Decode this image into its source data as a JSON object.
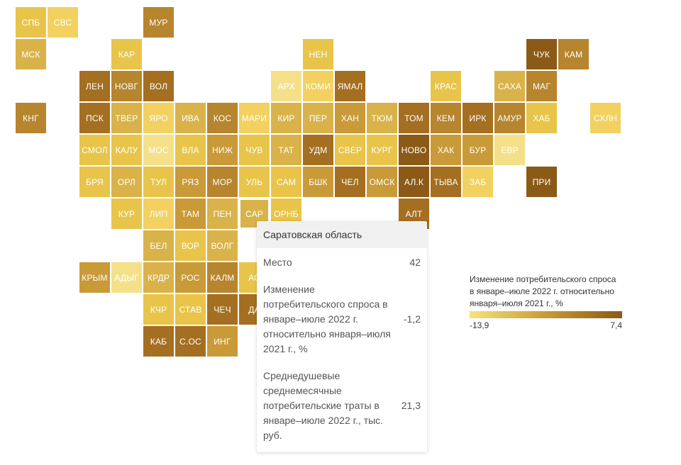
{
  "colors": {
    "l1": "#f5e08a",
    "l2": "#f2d160",
    "l3": "#e8c54a",
    "l4": "#d9b34a",
    "l5": "#c99a38",
    "l6": "#b6852e",
    "l7": "#a46f21",
    "l8": "#8b5a16"
  },
  "tiles": [
    {
      "code": "СПБ",
      "row": 0,
      "col": 0,
      "level": "l3"
    },
    {
      "code": "СВС",
      "row": 0,
      "col": 1,
      "level": "l2"
    },
    {
      "code": "МУР",
      "row": 0,
      "col": 4,
      "level": "l6"
    },
    {
      "code": "МСК",
      "row": 1,
      "col": 0,
      "level": "l4"
    },
    {
      "code": "КАР",
      "row": 1,
      "col": 3,
      "level": "l3"
    },
    {
      "code": "НЕН",
      "row": 1,
      "col": 9,
      "level": "l3"
    },
    {
      "code": "ЧУК",
      "row": 1,
      "col": 16,
      "level": "l8"
    },
    {
      "code": "КАМ",
      "row": 1,
      "col": 17,
      "level": "l6"
    },
    {
      "code": "ЛЕН",
      "row": 2,
      "col": 2,
      "level": "l7"
    },
    {
      "code": "НОВГ",
      "row": 2,
      "col": 3,
      "level": "l6"
    },
    {
      "code": "ВОЛ",
      "row": 2,
      "col": 4,
      "level": "l7"
    },
    {
      "code": "АРХ",
      "row": 2,
      "col": 8,
      "level": "l1"
    },
    {
      "code": "КОМИ",
      "row": 2,
      "col": 9,
      "level": "l2"
    },
    {
      "code": "ЯМАЛ",
      "row": 2,
      "col": 10,
      "level": "l7"
    },
    {
      "code": "КРАС",
      "row": 2,
      "col": 13,
      "level": "l3"
    },
    {
      "code": "САХА",
      "row": 2,
      "col": 15,
      "level": "l4"
    },
    {
      "code": "МАГ",
      "row": 2,
      "col": 16,
      "level": "l6"
    },
    {
      "code": "КНГ",
      "row": 3,
      "col": 0,
      "level": "l6"
    },
    {
      "code": "ПСК",
      "row": 3,
      "col": 2,
      "level": "l7"
    },
    {
      "code": "ТВЕР",
      "row": 3,
      "col": 3,
      "level": "l4"
    },
    {
      "code": "ЯРО",
      "row": 3,
      "col": 4,
      "level": "l2"
    },
    {
      "code": "ИВА",
      "row": 3,
      "col": 5,
      "level": "l4"
    },
    {
      "code": "КОС",
      "row": 3,
      "col": 6,
      "level": "l6"
    },
    {
      "code": "МАРИ",
      "row": 3,
      "col": 7,
      "level": "l2"
    },
    {
      "code": "КИР",
      "row": 3,
      "col": 8,
      "level": "l4"
    },
    {
      "code": "ПЕР",
      "row": 3,
      "col": 9,
      "level": "l4"
    },
    {
      "code": "ХАН",
      "row": 3,
      "col": 10,
      "level": "l5"
    },
    {
      "code": "ТЮМ",
      "row": 3,
      "col": 11,
      "level": "l4"
    },
    {
      "code": "ТОМ",
      "row": 3,
      "col": 12,
      "level": "l7"
    },
    {
      "code": "КЕМ",
      "row": 3,
      "col": 13,
      "level": "l6"
    },
    {
      "code": "ИРК",
      "row": 3,
      "col": 14,
      "level": "l7"
    },
    {
      "code": "АМУР",
      "row": 3,
      "col": 15,
      "level": "l6"
    },
    {
      "code": "ХАБ",
      "row": 3,
      "col": 16,
      "level": "l3"
    },
    {
      "code": "СХЛН",
      "row": 3,
      "col": 18,
      "level": "l2"
    },
    {
      "code": "СМОЛ",
      "row": 4,
      "col": 2,
      "level": "l3"
    },
    {
      "code": "КАЛУ",
      "row": 4,
      "col": 3,
      "level": "l3"
    },
    {
      "code": "МОС",
      "row": 4,
      "col": 4,
      "level": "l1"
    },
    {
      "code": "ВЛА",
      "row": 4,
      "col": 5,
      "level": "l3"
    },
    {
      "code": "НИЖ",
      "row": 4,
      "col": 6,
      "level": "l5"
    },
    {
      "code": "ЧУВ",
      "row": 4,
      "col": 7,
      "level": "l3"
    },
    {
      "code": "ТАТ",
      "row": 4,
      "col": 8,
      "level": "l4"
    },
    {
      "code": "УДМ",
      "row": 4,
      "col": 9,
      "level": "l7"
    },
    {
      "code": "СВЕР",
      "row": 4,
      "col": 10,
      "level": "l3"
    },
    {
      "code": "КУРГ",
      "row": 4,
      "col": 11,
      "level": "l3"
    },
    {
      "code": "НОВО",
      "row": 4,
      "col": 12,
      "level": "l8"
    },
    {
      "code": "ХАК",
      "row": 4,
      "col": 13,
      "level": "l5"
    },
    {
      "code": "БУР",
      "row": 4,
      "col": 14,
      "level": "l5"
    },
    {
      "code": "ЕВР",
      "row": 4,
      "col": 15,
      "level": "l1"
    },
    {
      "code": "БРЯ",
      "row": 5,
      "col": 2,
      "level": "l3"
    },
    {
      "code": "ОРЛ",
      "row": 5,
      "col": 3,
      "level": "l4"
    },
    {
      "code": "ТУЛ",
      "row": 5,
      "col": 4,
      "level": "l3"
    },
    {
      "code": "РЯЗ",
      "row": 5,
      "col": 5,
      "level": "l5"
    },
    {
      "code": "МОР",
      "row": 5,
      "col": 6,
      "level": "l6"
    },
    {
      "code": "УЛЬ",
      "row": 5,
      "col": 7,
      "level": "l3"
    },
    {
      "code": "САМ",
      "row": 5,
      "col": 8,
      "level": "l3"
    },
    {
      "code": "БШК",
      "row": 5,
      "col": 9,
      "level": "l5"
    },
    {
      "code": "ЧЕЛ",
      "row": 5,
      "col": 10,
      "level": "l7"
    },
    {
      "code": "ОМСК",
      "row": 5,
      "col": 11,
      "level": "l5"
    },
    {
      "code": "АЛ.К",
      "row": 5,
      "col": 12,
      "level": "l8"
    },
    {
      "code": "ТЫВА",
      "row": 5,
      "col": 13,
      "level": "l7"
    },
    {
      "code": "ЗАБ",
      "row": 5,
      "col": 14,
      "level": "l2"
    },
    {
      "code": "ПРИ",
      "row": 5,
      "col": 16,
      "level": "l8"
    },
    {
      "code": "КУР",
      "row": 6,
      "col": 3,
      "level": "l3"
    },
    {
      "code": "ЛИП",
      "row": 6,
      "col": 4,
      "level": "l2"
    },
    {
      "code": "ТАМ",
      "row": 6,
      "col": 5,
      "level": "l5"
    },
    {
      "code": "ПЕН",
      "row": 6,
      "col": 6,
      "level": "l4"
    },
    {
      "code": "САР",
      "row": 6,
      "col": 7,
      "level": "l4",
      "selected": true
    },
    {
      "code": "ОРНБ",
      "row": 6,
      "col": 8,
      "level": "l3"
    },
    {
      "code": "АЛТ",
      "row": 6,
      "col": 12,
      "level": "l7"
    },
    {
      "code": "БЕЛ",
      "row": 7,
      "col": 4,
      "level": "l4"
    },
    {
      "code": "ВОР",
      "row": 7,
      "col": 5,
      "level": "l3"
    },
    {
      "code": "ВОЛГ",
      "row": 7,
      "col": 6,
      "level": "l4"
    },
    {
      "code": "КРЫМ",
      "row": 8,
      "col": 2,
      "level": "l5"
    },
    {
      "code": "АДЫГ",
      "row": 8,
      "col": 3,
      "level": "l1"
    },
    {
      "code": "КРДР",
      "row": 8,
      "col": 4,
      "level": "l4"
    },
    {
      "code": "РОС",
      "row": 8,
      "col": 5,
      "level": "l5"
    },
    {
      "code": "КАЛМ",
      "row": 8,
      "col": 6,
      "level": "l6"
    },
    {
      "code": "АС",
      "row": 8,
      "col": 7,
      "level": "l3"
    },
    {
      "code": "КЧР",
      "row": 9,
      "col": 4,
      "level": "l3"
    },
    {
      "code": "СТАВ",
      "row": 9,
      "col": 5,
      "level": "l3"
    },
    {
      "code": "ЧЕЧ",
      "row": 9,
      "col": 6,
      "level": "l7"
    },
    {
      "code": "ДА",
      "row": 9,
      "col": 7,
      "level": "l7"
    },
    {
      "code": "КАБ",
      "row": 10,
      "col": 4,
      "level": "l7"
    },
    {
      "code": "С.ОС",
      "row": 10,
      "col": 5,
      "level": "l7"
    },
    {
      "code": "ИНГ",
      "row": 10,
      "col": 6,
      "level": "l5"
    }
  ],
  "tooltip": {
    "title": "Саратовская область",
    "rows": [
      {
        "label": "Место",
        "value": "42"
      },
      {
        "label": "Изменение потребительского спроса в январе–июле 2022 г. относительно января–июля 2021 г., %",
        "value": "-1,2"
      },
      {
        "label": "Среднедушевые среднемесячные потребительские траты в январе–июле 2022 г., тыс. руб.",
        "value": "21,3"
      }
    ]
  },
  "legend": {
    "title": "Изменение потребительского спроса в январе–июле 2022 г. относительно января–июля 2021 г., %",
    "min_label": "-13,9",
    "max_label": "7,4"
  }
}
